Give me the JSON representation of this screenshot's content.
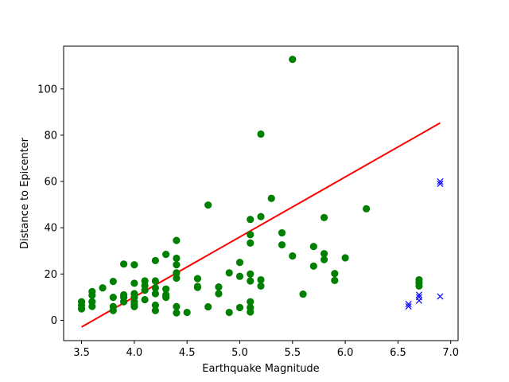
{
  "chart_data": {
    "type": "scatter",
    "title": "",
    "xlabel": "Earthquake Magnitude",
    "ylabel": "Distance to Epicenter",
    "xlim": [
      3.33,
      7.07
    ],
    "ylim": [
      -8.8,
      118.5
    ],
    "xticks": [
      3.5,
      4.0,
      4.5,
      5.0,
      5.5,
      6.0,
      6.5,
      7.0
    ],
    "xtick_labels": [
      "3.5",
      "4.0",
      "4.5",
      "5.0",
      "5.5",
      "6.0",
      "6.5",
      "7.0"
    ],
    "yticks": [
      0,
      20,
      40,
      60,
      80,
      100
    ],
    "ytick_labels": [
      "0",
      "20",
      "40",
      "60",
      "80",
      "100"
    ],
    "grid": false,
    "colors": {
      "points": "#008000",
      "outliers": "#0000ff",
      "fit": "#ff0000"
    },
    "series": [
      {
        "marker": "circle",
        "color": "#008000",
        "points": [
          [
            3.5,
            8.0
          ],
          [
            3.5,
            6.5
          ],
          [
            3.5,
            4.9
          ],
          [
            3.6,
            12.4
          ],
          [
            3.6,
            10.8
          ],
          [
            3.6,
            8.0
          ],
          [
            3.6,
            6.0
          ],
          [
            3.7,
            14.0
          ],
          [
            3.8,
            16.8
          ],
          [
            3.8,
            9.9
          ],
          [
            3.8,
            5.9
          ],
          [
            3.8,
            4.2
          ],
          [
            3.9,
            24.3
          ],
          [
            3.9,
            11.0
          ],
          [
            3.9,
            9.9
          ],
          [
            3.9,
            8.0
          ],
          [
            4.0,
            24.0
          ],
          [
            4.0,
            16.0
          ],
          [
            4.0,
            11.5
          ],
          [
            4.0,
            9.9
          ],
          [
            4.0,
            8.0
          ],
          [
            4.0,
            6.8
          ],
          [
            4.0,
            5.9
          ],
          [
            4.1,
            17.0
          ],
          [
            4.1,
            15.0
          ],
          [
            4.1,
            13.0
          ],
          [
            4.1,
            8.9
          ],
          [
            4.2,
            25.8
          ],
          [
            4.2,
            17.0
          ],
          [
            4.2,
            14.0
          ],
          [
            4.2,
            11.5
          ],
          [
            4.2,
            6.5
          ],
          [
            4.2,
            4.2
          ],
          [
            4.3,
            28.5
          ],
          [
            4.3,
            13.5
          ],
          [
            4.3,
            11.0
          ],
          [
            4.3,
            9.9
          ],
          [
            4.4,
            34.5
          ],
          [
            4.4,
            26.8
          ],
          [
            4.4,
            24.0
          ],
          [
            4.4,
            20.5
          ],
          [
            4.4,
            18.2
          ],
          [
            4.4,
            5.9
          ],
          [
            4.4,
            3.2
          ],
          [
            4.5,
            3.4
          ],
          [
            4.6,
            18.0
          ],
          [
            4.6,
            14.6
          ],
          [
            4.6,
            14.2
          ],
          [
            4.7,
            49.8
          ],
          [
            4.7,
            5.8
          ],
          [
            4.8,
            14.4
          ],
          [
            4.8,
            11.5
          ],
          [
            4.9,
            20.5
          ],
          [
            4.9,
            3.4
          ],
          [
            5.0,
            25.0
          ],
          [
            5.0,
            19.0
          ],
          [
            5.0,
            5.5
          ],
          [
            5.1,
            43.6
          ],
          [
            5.1,
            37.0
          ],
          [
            5.1,
            33.4
          ],
          [
            5.1,
            20.0
          ],
          [
            5.1,
            17.0
          ],
          [
            5.1,
            8.0
          ],
          [
            5.1,
            5.5
          ],
          [
            5.1,
            3.6
          ],
          [
            5.2,
            80.5
          ],
          [
            5.2,
            44.8
          ],
          [
            5.2,
            17.5
          ],
          [
            5.2,
            14.8
          ],
          [
            5.3,
            52.7
          ],
          [
            5.4,
            37.8
          ],
          [
            5.4,
            32.6
          ],
          [
            5.5,
            112.8
          ],
          [
            5.5,
            27.8
          ],
          [
            5.6,
            11.3
          ],
          [
            5.7,
            31.9
          ],
          [
            5.7,
            23.4
          ],
          [
            5.8,
            44.4
          ],
          [
            5.8,
            28.8
          ],
          [
            5.8,
            26.2
          ],
          [
            5.9,
            20.2
          ],
          [
            5.9,
            17.2
          ],
          [
            6.0,
            27.0
          ],
          [
            6.2,
            48.2
          ],
          [
            6.7,
            17.5
          ],
          [
            6.7,
            16.2
          ],
          [
            6.7,
            14.8
          ]
        ]
      },
      {
        "marker": "x",
        "color": "#0000ff",
        "points": [
          [
            6.6,
            7.0
          ],
          [
            6.6,
            6.0
          ],
          [
            6.7,
            11.0
          ],
          [
            6.7,
            10.0
          ],
          [
            6.7,
            8.5
          ],
          [
            6.9,
            60.0
          ],
          [
            6.9,
            59.0
          ],
          [
            6.9,
            10.3
          ]
        ]
      }
    ],
    "fit_line": {
      "color": "#ff0000",
      "x": [
        3.5,
        6.9
      ],
      "y": [
        -2.9,
        85.3
      ]
    }
  }
}
